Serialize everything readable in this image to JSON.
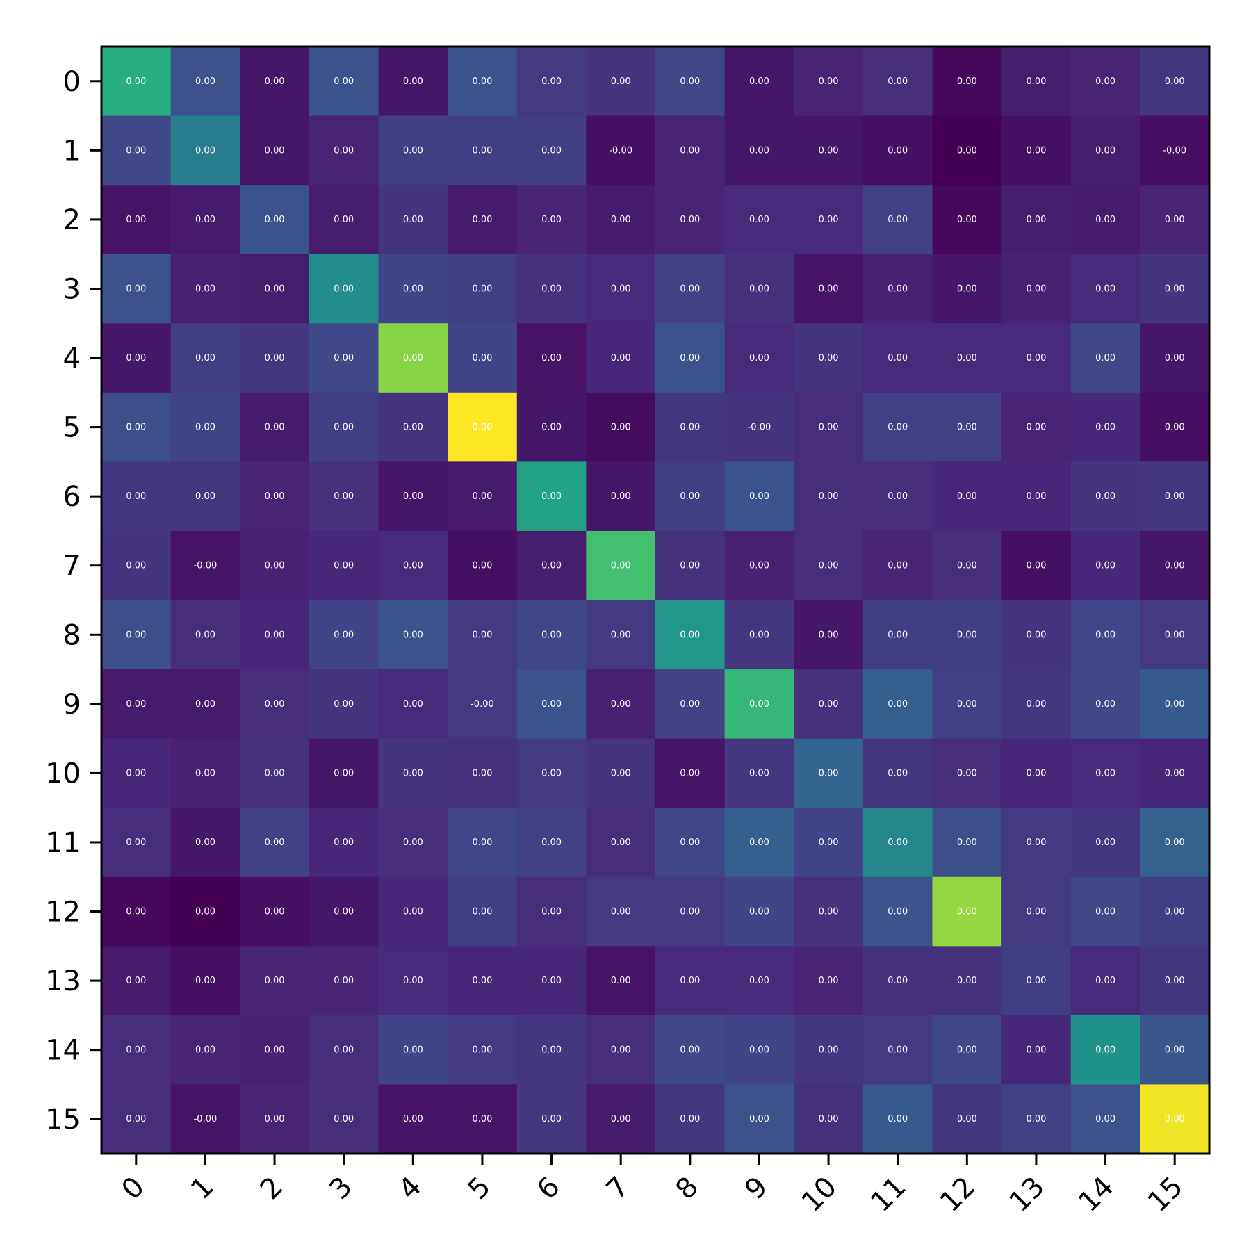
{
  "chart_data": {
    "type": "heatmap",
    "colormap": "viridis",
    "x_tick_labels": [
      "0",
      "1",
      "2",
      "3",
      "4",
      "5",
      "6",
      "7",
      "8",
      "9",
      "10",
      "11",
      "12",
      "13",
      "14",
      "15"
    ],
    "y_tick_labels": [
      "0",
      "1",
      "2",
      "3",
      "4",
      "5",
      "6",
      "7",
      "8",
      "9",
      "10",
      "11",
      "12",
      "13",
      "14",
      "15"
    ],
    "x_tick_rotation_deg": -45,
    "colorbar": false,
    "grid": false,
    "intensity_range": [
      0,
      1
    ],
    "intensity": [
      [
        0.62,
        0.25,
        0.06,
        0.26,
        0.06,
        0.26,
        0.17,
        0.15,
        0.22,
        0.06,
        0.1,
        0.13,
        0.02,
        0.08,
        0.1,
        0.16
      ],
      [
        0.22,
        0.42,
        0.06,
        0.1,
        0.18,
        0.18,
        0.18,
        0.04,
        0.1,
        0.06,
        0.06,
        0.04,
        0.0,
        0.04,
        0.08,
        0.04
      ],
      [
        0.05,
        0.07,
        0.26,
        0.08,
        0.15,
        0.07,
        0.1,
        0.07,
        0.1,
        0.12,
        0.12,
        0.19,
        0.02,
        0.08,
        0.07,
        0.1
      ],
      [
        0.25,
        0.09,
        0.08,
        0.48,
        0.2,
        0.18,
        0.14,
        0.12,
        0.19,
        0.14,
        0.05,
        0.09,
        0.06,
        0.09,
        0.12,
        0.15
      ],
      [
        0.06,
        0.18,
        0.16,
        0.22,
        0.82,
        0.2,
        0.05,
        0.11,
        0.26,
        0.12,
        0.15,
        0.12,
        0.12,
        0.12,
        0.22,
        0.06
      ],
      [
        0.24,
        0.2,
        0.07,
        0.18,
        0.15,
        1.0,
        0.06,
        0.03,
        0.16,
        0.15,
        0.13,
        0.19,
        0.19,
        0.1,
        0.11,
        0.04
      ],
      [
        0.16,
        0.16,
        0.1,
        0.14,
        0.06,
        0.07,
        0.58,
        0.06,
        0.18,
        0.26,
        0.13,
        0.13,
        0.11,
        0.11,
        0.15,
        0.16
      ],
      [
        0.15,
        0.05,
        0.09,
        0.11,
        0.12,
        0.04,
        0.08,
        0.7,
        0.14,
        0.09,
        0.13,
        0.1,
        0.13,
        0.04,
        0.11,
        0.06
      ],
      [
        0.24,
        0.13,
        0.11,
        0.2,
        0.26,
        0.17,
        0.21,
        0.17,
        0.52,
        0.16,
        0.06,
        0.18,
        0.18,
        0.15,
        0.21,
        0.17
      ],
      [
        0.07,
        0.07,
        0.13,
        0.15,
        0.12,
        0.17,
        0.26,
        0.09,
        0.19,
        0.66,
        0.14,
        0.3,
        0.19,
        0.16,
        0.22,
        0.28
      ],
      [
        0.11,
        0.09,
        0.14,
        0.06,
        0.15,
        0.14,
        0.17,
        0.15,
        0.05,
        0.16,
        0.32,
        0.16,
        0.13,
        0.11,
        0.12,
        0.11
      ],
      [
        0.13,
        0.06,
        0.19,
        0.11,
        0.13,
        0.21,
        0.19,
        0.13,
        0.21,
        0.3,
        0.2,
        0.46,
        0.24,
        0.17,
        0.16,
        0.31
      ],
      [
        0.02,
        0.0,
        0.04,
        0.06,
        0.11,
        0.18,
        0.13,
        0.17,
        0.17,
        0.2,
        0.14,
        0.25,
        0.84,
        0.17,
        0.22,
        0.18
      ],
      [
        0.07,
        0.04,
        0.1,
        0.1,
        0.12,
        0.11,
        0.11,
        0.05,
        0.12,
        0.12,
        0.1,
        0.14,
        0.14,
        0.18,
        0.12,
        0.16
      ],
      [
        0.13,
        0.1,
        0.09,
        0.13,
        0.2,
        0.17,
        0.16,
        0.13,
        0.22,
        0.2,
        0.16,
        0.17,
        0.22,
        0.11,
        0.5,
        0.27
      ],
      [
        0.13,
        0.05,
        0.1,
        0.13,
        0.05,
        0.05,
        0.16,
        0.07,
        0.16,
        0.25,
        0.14,
        0.28,
        0.16,
        0.19,
        0.25,
        0.98
      ]
    ],
    "cell_labels": [
      [
        "0.00",
        "0.00",
        "0.00",
        "0.00",
        "0.00",
        "0.00",
        "0.00",
        "0.00",
        "0.00",
        "0.00",
        "0.00",
        "0.00",
        "0.00",
        "0.00",
        "0.00",
        "0.00"
      ],
      [
        "0.00",
        "0.00",
        "0.00",
        "0.00",
        "0.00",
        "0.00",
        "0.00",
        "-0.00",
        "0.00",
        "0.00",
        "0.00",
        "0.00",
        "0.00",
        "0.00",
        "0.00",
        "-0.00"
      ],
      [
        "0.00",
        "0.00",
        "0.00",
        "0.00",
        "0.00",
        "0.00",
        "0.00",
        "0.00",
        "0.00",
        "0.00",
        "0.00",
        "0.00",
        "0.00",
        "0.00",
        "0.00",
        "0.00"
      ],
      [
        "0.00",
        "0.00",
        "0.00",
        "0.00",
        "0.00",
        "0.00",
        "0.00",
        "0.00",
        "0.00",
        "0.00",
        "0.00",
        "0.00",
        "0.00",
        "0.00",
        "0.00",
        "0.00"
      ],
      [
        "0.00",
        "0.00",
        "0.00",
        "0.00",
        "0.00",
        "0.00",
        "0.00",
        "0.00",
        "0.00",
        "0.00",
        "0.00",
        "0.00",
        "0.00",
        "0.00",
        "0.00",
        "0.00"
      ],
      [
        "0.00",
        "0.00",
        "0.00",
        "0.00",
        "0.00",
        "0.00",
        "0.00",
        "0.00",
        "0.00",
        "-0.00",
        "0.00",
        "0.00",
        "0.00",
        "0.00",
        "0.00",
        "0.00"
      ],
      [
        "0.00",
        "0.00",
        "0.00",
        "0.00",
        "0.00",
        "0.00",
        "0.00",
        "0.00",
        "0.00",
        "0.00",
        "0.00",
        "0.00",
        "0.00",
        "0.00",
        "0.00",
        "0.00"
      ],
      [
        "0.00",
        "-0.00",
        "0.00",
        "0.00",
        "0.00",
        "0.00",
        "0.00",
        "0.00",
        "0.00",
        "0.00",
        "0.00",
        "0.00",
        "0.00",
        "0.00",
        "0.00",
        "0.00"
      ],
      [
        "0.00",
        "0.00",
        "0.00",
        "0.00",
        "0.00",
        "0.00",
        "0.00",
        "0.00",
        "0.00",
        "0.00",
        "0.00",
        "0.00",
        "0.00",
        "0.00",
        "0.00",
        "0.00"
      ],
      [
        "0.00",
        "0.00",
        "0.00",
        "0.00",
        "0.00",
        "-0.00",
        "0.00",
        "0.00",
        "0.00",
        "0.00",
        "0.00",
        "0.00",
        "0.00",
        "0.00",
        "0.00",
        "0.00"
      ],
      [
        "0.00",
        "0.00",
        "0.00",
        "0.00",
        "0.00",
        "0.00",
        "0.00",
        "0.00",
        "0.00",
        "0.00",
        "0.00",
        "0.00",
        "0.00",
        "0.00",
        "0.00",
        "0.00"
      ],
      [
        "0.00",
        "0.00",
        "0.00",
        "0.00",
        "0.00",
        "0.00",
        "0.00",
        "0.00",
        "0.00",
        "0.00",
        "0.00",
        "0.00",
        "0.00",
        "0.00",
        "0.00",
        "0.00"
      ],
      [
        "0.00",
        "0.00",
        "0.00",
        "0.00",
        "0.00",
        "0.00",
        "0.00",
        "0.00",
        "0.00",
        "0.00",
        "0.00",
        "0.00",
        "0.00",
        "0.00",
        "0.00",
        "0.00"
      ],
      [
        "0.00",
        "0.00",
        "0.00",
        "0.00",
        "0.00",
        "0.00",
        "0.00",
        "0.00",
        "0.00",
        "0.00",
        "0.00",
        "0.00",
        "0.00",
        "0.00",
        "0.00",
        "0.00"
      ],
      [
        "0.00",
        "0.00",
        "0.00",
        "0.00",
        "0.00",
        "0.00",
        "0.00",
        "0.00",
        "0.00",
        "0.00",
        "0.00",
        "0.00",
        "0.00",
        "0.00",
        "0.00",
        "0.00"
      ],
      [
        "0.00",
        "-0.00",
        "0.00",
        "0.00",
        "0.00",
        "0.00",
        "0.00",
        "0.00",
        "0.00",
        "0.00",
        "0.00",
        "0.00",
        "0.00",
        "0.00",
        "0.00",
        "0.00"
      ]
    ]
  },
  "colors": {
    "axis_frame": "#000000",
    "cell_text_dark_bg": "#ffffff",
    "cell_text_light_bg": "#ffffff",
    "background": "#ffffff"
  }
}
